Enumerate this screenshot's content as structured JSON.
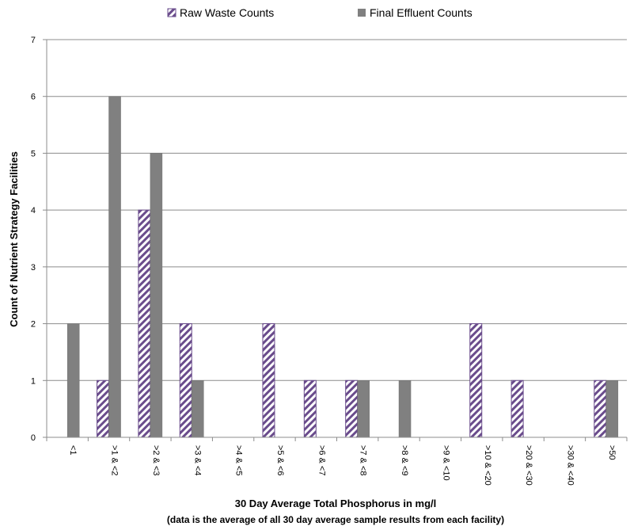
{
  "chart_data": {
    "type": "bar",
    "categories": [
      "<1",
      ">1 & <2",
      ">2 & <3",
      ">3 & <4",
      ">4 & <5",
      ">5 & <6",
      ">6 & <7",
      ">7 & <8",
      ">8 & <9",
      ">9 & <10",
      ">10 & <20",
      ">20 & <30",
      ">30 & <40",
      ">50"
    ],
    "series": [
      {
        "name": "Raw Waste Counts",
        "values": [
          0,
          1,
          4,
          2,
          0,
          2,
          1,
          1,
          0,
          0,
          2,
          1,
          0,
          1
        ],
        "color": "#6a4c8c",
        "pattern": "hatched"
      },
      {
        "name": "Final Effluent Counts",
        "values": [
          2,
          6,
          5,
          1,
          0,
          0,
          0,
          1,
          1,
          0,
          0,
          0,
          0,
          1
        ],
        "color": "#808080",
        "pattern": "solid"
      }
    ],
    "xlabel": "30 Day Average Total Phosphorus in mg/l",
    "xlabel_note": "(data is the average of all 30 day average sample results from each facility)",
    "ylabel": "Count of Nutrient Strategy Facilities",
    "ylim": [
      0,
      7
    ],
    "yticks": [
      0,
      1,
      2,
      3,
      4,
      5,
      6,
      7
    ],
    "grid": true,
    "legend_position": "top"
  }
}
